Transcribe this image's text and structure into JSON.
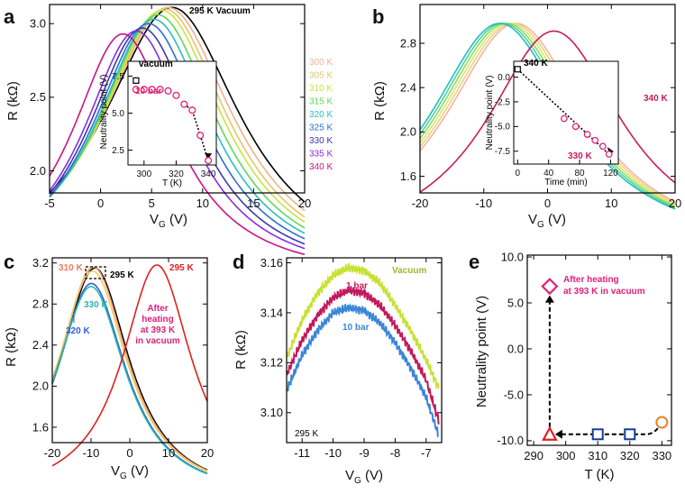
{
  "chart_data": [
    {
      "panel": "a",
      "type": "line",
      "title": "295 K Vacuum",
      "xlabel": "V_G (V)",
      "ylabel": "R (kΩ)",
      "xlim": [
        -5,
        20
      ],
      "ylim": [
        1.85,
        3.13
      ],
      "xticks": [
        "-5",
        "0",
        "5",
        "10",
        "15",
        "20"
      ],
      "yticks": [
        "2.0",
        "2.5",
        "3.0"
      ],
      "series": [
        {
          "name": "295 K",
          "color": "#000000",
          "peak_x": 7.0,
          "peak_y": 3.11,
          "width": 8.3
        },
        {
          "name": "300 K",
          "color": "#f2b08e",
          "peak_x": 6.6,
          "peak_y": 3.11,
          "width": 7.9
        },
        {
          "name": "305 K",
          "color": "#e6c46a",
          "peak_x": 6.3,
          "peak_y": 3.1,
          "width": 7.6
        },
        {
          "name": "310 K",
          "color": "#c8e53f",
          "peak_x": 6.0,
          "peak_y": 3.09,
          "width": 7.4
        },
        {
          "name": "315 K",
          "color": "#5ed856",
          "peak_x": 5.6,
          "peak_y": 3.06,
          "width": 7.2
        },
        {
          "name": "320 K",
          "color": "#2abfbf",
          "peak_x": 5.2,
          "peak_y": 3.03,
          "width": 7.0
        },
        {
          "name": "325 K",
          "color": "#2d6ed8",
          "peak_x": 4.7,
          "peak_y": 3.0,
          "width": 6.8
        },
        {
          "name": "330 K",
          "color": "#3a3ab0",
          "peak_x": 4.1,
          "peak_y": 2.97,
          "width": 6.6
        },
        {
          "name": "335 K",
          "color": "#8a2be2",
          "peak_x": 3.5,
          "peak_y": 2.95,
          "width": 6.4
        },
        {
          "name": "340 K",
          "color": "#c71585",
          "peak_x": 2.2,
          "peak_y": 2.93,
          "width": 6.2
        }
      ],
      "inset": {
        "xlabel": "T (K)",
        "ylabel": "Neutrality point (V)",
        "xticks": [
          "300",
          "320",
          "340"
        ],
        "yticks": [
          "2.5",
          "5.0",
          "7.5"
        ],
        "xlim": [
          290,
          345
        ],
        "ylim": [
          1.5,
          8.5
        ],
        "vacuum_label": "vacuum",
        "bar_label": "10 bar",
        "vacuum_point": {
          "x": 295,
          "y": 7.2
        },
        "points": [
          {
            "x": 295,
            "y": 6.6
          },
          {
            "x": 300,
            "y": 6.6
          },
          {
            "x": 305,
            "y": 6.6
          },
          {
            "x": 310,
            "y": 6.6
          },
          {
            "x": 315,
            "y": 6.5
          },
          {
            "x": 320,
            "y": 6.2
          },
          {
            "x": 325,
            "y": 5.6
          },
          {
            "x": 330,
            "y": 5.2
          },
          {
            "x": 335,
            "y": 3.5
          },
          {
            "x": 340,
            "y": 1.8
          }
        ]
      }
    },
    {
      "panel": "b",
      "type": "line",
      "xlabel": "V_G (V)",
      "ylabel": "R (kΩ)",
      "xlim": [
        -20,
        20
      ],
      "ylim": [
        1.45,
        3.15
      ],
      "xticks": [
        "-20",
        "-10",
        "0",
        "10",
        "20"
      ],
      "yticks": [
        "1.6",
        "2.0",
        "2.4",
        "2.8"
      ],
      "label_340": "340 K",
      "series": [
        {
          "name": "b1",
          "color": "#f5b4a0",
          "peak_x": -5.0,
          "peak_y": 2.98,
          "width": 13.5
        },
        {
          "name": "b2",
          "color": "#f0cf85",
          "peak_x": -5.5,
          "peak_y": 2.98,
          "width": 13.5
        },
        {
          "name": "b3",
          "color": "#d7e96a",
          "peak_x": -6.0,
          "peak_y": 2.98,
          "width": 13.5
        },
        {
          "name": "b4",
          "color": "#8fdc63",
          "peak_x": -6.5,
          "peak_y": 2.98,
          "width": 13.5
        },
        {
          "name": "b5",
          "color": "#4fd3a2",
          "peak_x": -7.0,
          "peak_y": 2.98,
          "width": 13.5
        },
        {
          "name": "b6",
          "color": "#1fbfb9",
          "peak_x": -7.5,
          "peak_y": 2.98,
          "width": 13.5
        },
        {
          "name": "340 K",
          "color": "#c71c5a",
          "peak_x": 1.0,
          "peak_y": 2.91,
          "width": 13.0
        }
      ],
      "inset": {
        "xlabel": "Time (min)",
        "ylabel": "Neutrality point (V)",
        "xticks": [
          "0",
          "40",
          "80",
          "120"
        ],
        "yticks": [
          "0.0",
          "-2.5",
          "-5.0",
          "-7.5"
        ],
        "xlim": [
          -5,
          130
        ],
        "ylim": [
          -8.8,
          1.6
        ],
        "label_340": "340 K",
        "label_330": "330 K",
        "square_point": {
          "x": 0,
          "y": 0.8
        },
        "points": [
          {
            "x": 60,
            "y": -4.2
          },
          {
            "x": 75,
            "y": -5.0
          },
          {
            "x": 90,
            "y": -5.8
          },
          {
            "x": 100,
            "y": -6.4
          },
          {
            "x": 110,
            "y": -7.0
          },
          {
            "x": 118,
            "y": -7.8
          }
        ]
      }
    },
    {
      "panel": "c",
      "type": "line",
      "xlabel": "V_G (V)",
      "ylabel": "R (kΩ)",
      "xlim": [
        -20,
        20
      ],
      "ylim": [
        1.45,
        3.25
      ],
      "xticks": [
        "-20",
        "-10",
        "0",
        "10",
        "20"
      ],
      "yticks": [
        "1.6",
        "2.0",
        "2.4",
        "2.8",
        "3.2"
      ],
      "labels": {
        "t310": "310 K",
        "t295a": "295 K",
        "t330": "330 K",
        "t320": "320 K",
        "t295b": "295 K",
        "after1": "After",
        "after2": "heating",
        "after3": "at 393 K",
        "after4": "in vacuum"
      },
      "series": [
        {
          "name": "295 K vacuum",
          "color": "#000000",
          "peak_x": -9.0,
          "peak_y": 3.15,
          "width": 11.0
        },
        {
          "name": "310 K",
          "color": "#f0a080",
          "peak_x": -9.4,
          "peak_y": 3.16,
          "width": 11.0
        },
        {
          "name": "315 K",
          "color": "#f0d060",
          "peak_x": -9.6,
          "peak_y": 3.12,
          "width": 11.0
        },
        {
          "name": "320 K",
          "color": "#2d5fd8",
          "peak_x": -9.9,
          "peak_y": 3.0,
          "width": 11.0
        },
        {
          "name": "330 K",
          "color": "#2ab6b0",
          "peak_x": -10.0,
          "peak_y": 2.97,
          "width": 11.0
        },
        {
          "name": "After heating 295 K",
          "color": "#e02020",
          "peak_x": 7.0,
          "peak_y": 3.18,
          "width": 11.0
        }
      ]
    },
    {
      "panel": "d",
      "type": "line",
      "xlabel": "V_G (V)",
      "ylabel": "R (kΩ)",
      "xlim": [
        -11.5,
        -6.5
      ],
      "ylim": [
        3.088,
        3.162
      ],
      "xticks": [
        "-11",
        "-10",
        "-9",
        "-8",
        "-7"
      ],
      "yticks": [
        "3.10",
        "3.12",
        "3.14",
        "3.16"
      ],
      "note": "295 K",
      "series": [
        {
          "name": "Vacuum",
          "color": "#c8e032",
          "x": [
            -11.5,
            -11.0,
            -10.5,
            -10.0,
            -9.5,
            -9.0,
            -8.5,
            -8.0,
            -7.5,
            -7.0,
            -6.6
          ],
          "y": [
            3.122,
            3.137,
            3.148,
            3.155,
            3.158,
            3.157,
            3.152,
            3.143,
            3.133,
            3.121,
            3.11
          ]
        },
        {
          "name": "1 bar",
          "color": "#c2185b",
          "x": [
            -11.5,
            -11.0,
            -10.5,
            -10.0,
            -9.5,
            -9.0,
            -8.5,
            -8.0,
            -7.5,
            -7.0,
            -6.6
          ],
          "y": [
            3.115,
            3.129,
            3.139,
            3.146,
            3.149,
            3.148,
            3.143,
            3.135,
            3.125,
            3.113,
            3.097
          ]
        },
        {
          "name": "10 bar",
          "color": "#3a86d8",
          "x": [
            -11.5,
            -11.0,
            -10.5,
            -10.0,
            -9.5,
            -9.0,
            -8.5,
            -8.0,
            -7.5,
            -7.0,
            -6.6
          ],
          "y": [
            3.109,
            3.123,
            3.133,
            3.14,
            3.142,
            3.141,
            3.136,
            3.128,
            3.118,
            3.106,
            3.091
          ]
        }
      ]
    },
    {
      "panel": "e",
      "type": "scatter",
      "xlabel": "T (K)",
      "ylabel": "Neutrality point (V)",
      "xlim": [
        288,
        333
      ],
      "ylim": [
        -10.5,
        10.2
      ],
      "xticks": [
        "290",
        "300",
        "310",
        "320",
        "330"
      ],
      "yticks": [
        "10.0",
        "5.0",
        "0.0",
        "-5.0",
        "-10.0"
      ],
      "annotation": [
        "After heating",
        "at 393 K in vacuum"
      ],
      "points": [
        {
          "name": "330 K start",
          "x": 330,
          "y": -8.0,
          "color": "#e8822a",
          "shape": "circle"
        },
        {
          "name": "320 K",
          "x": 320,
          "y": -9.3,
          "color": "#1a3a9a",
          "shape": "square"
        },
        {
          "name": "310 K",
          "x": 310,
          "y": -9.3,
          "color": "#1a3a9a",
          "shape": "square"
        },
        {
          "name": "295 K",
          "x": 295,
          "y": -9.3,
          "color": "#e02020",
          "shape": "triangle"
        },
        {
          "name": "after heating",
          "x": 295,
          "y": 6.8,
          "color": "#e0207a",
          "shape": "diamond"
        }
      ]
    }
  ]
}
